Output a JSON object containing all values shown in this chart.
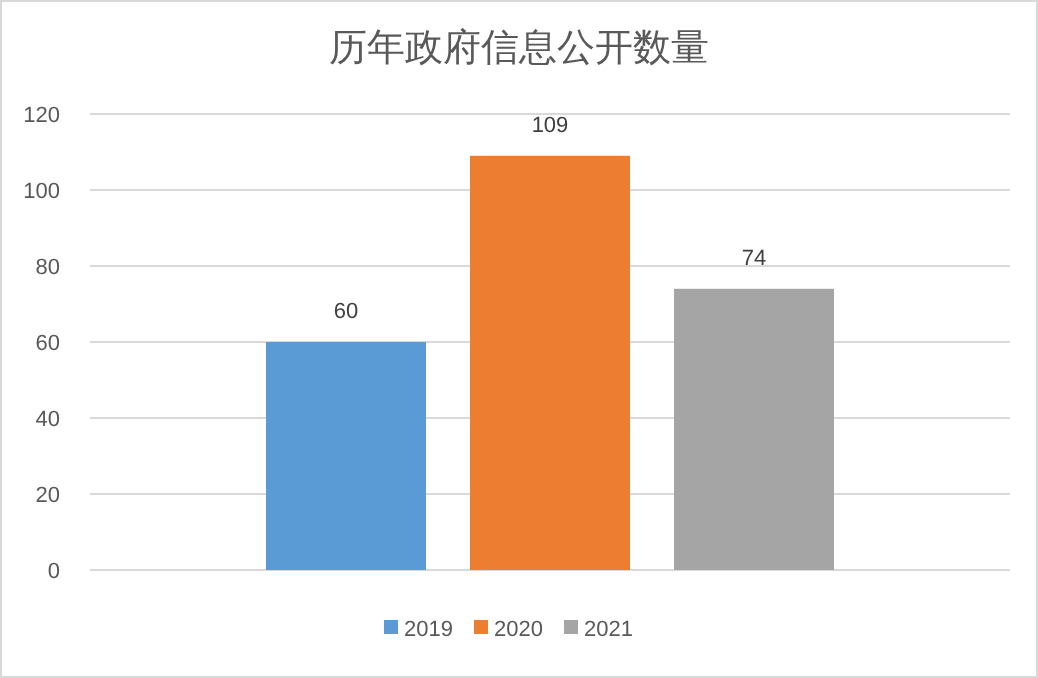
{
  "chart_data": {
    "type": "bar",
    "title": "历年政府信息公开数量",
    "categories": [
      null
    ],
    "series": [
      {
        "name": "2019",
        "color": "#5b9bd5",
        "values": [
          60
        ]
      },
      {
        "name": "2020",
        "color": "#ed7d31",
        "values": [
          109
        ]
      },
      {
        "name": "2021",
        "color": "#a5a5a5",
        "values": [
          74
        ]
      }
    ],
    "ylim": [
      0,
      120
    ],
    "yticks": [
      0,
      20,
      40,
      60,
      80,
      100,
      120
    ],
    "grid": "y",
    "legend": "bottom",
    "data_labels": true
  }
}
